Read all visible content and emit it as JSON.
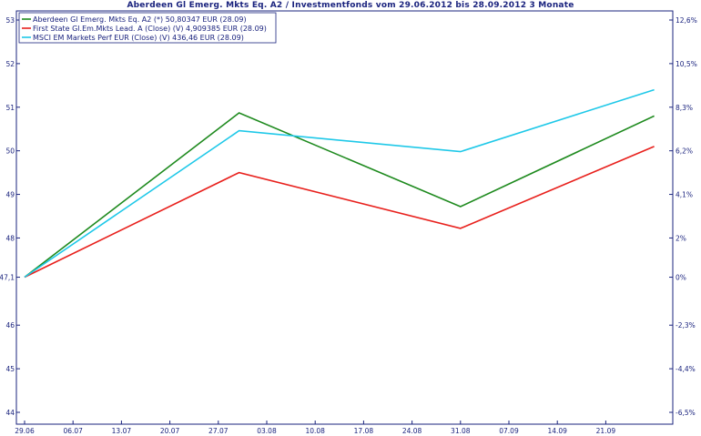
{
  "chart_data": {
    "type": "line",
    "title": "Aberdeen Gl Emerg. Mkts Eq. A2 / Investmentfonds vom 29.06.2012 bis 28.09.2012 3 Monate",
    "x_categories": [
      "29.06",
      "06.07",
      "13.07",
      "20.07",
      "27.07",
      "03.08",
      "10.08",
      "17.08",
      "24.08",
      "31.08",
      "07.09",
      "14.09",
      "21.09"
    ],
    "y_left_ticks": [
      "53",
      "52",
      "51",
      "50",
      "49",
      "48",
      "47,1",
      "46",
      "45",
      "44"
    ],
    "y_right_ticks": [
      "12,6%",
      "10,5%",
      "8,3%",
      "6,2%",
      "4,1%",
      "2%",
      "0%",
      "-2,3%",
      "-4,4%",
      "-6,5%"
    ],
    "ylim": [
      43.8,
      53.2
    ],
    "legend_position": "top-left",
    "grid": false,
    "series": [
      {
        "name": "Aberdeen Gl Emerg. Mkts Eq. A2 (*) 50,80347 EUR (28.09)",
        "color": "#1e8a1e",
        "points": [
          [
            "29.06",
            47.1
          ],
          [
            "30.07",
            50.87
          ],
          [
            "31.08",
            48.72
          ],
          [
            "28.09",
            50.8
          ]
        ]
      },
      {
        "name": "First State Gl.Em.Mkts Lead. A (Close) (V) 4,909385 EUR (28.09)",
        "color": "#e8201c",
        "points": [
          [
            "29.06",
            47.1
          ],
          [
            "30.07",
            49.5
          ],
          [
            "31.08",
            48.22
          ],
          [
            "28.09",
            50.1
          ]
        ]
      },
      {
        "name": "MSCI EM Markets Perf EUR (Close) (V) 436,46 EUR (28.09)",
        "color": "#1ec8e8",
        "points": [
          [
            "29.06",
            47.1
          ],
          [
            "30.07",
            50.46
          ],
          [
            "31.08",
            49.98
          ],
          [
            "28.09",
            51.4
          ]
        ]
      }
    ]
  }
}
